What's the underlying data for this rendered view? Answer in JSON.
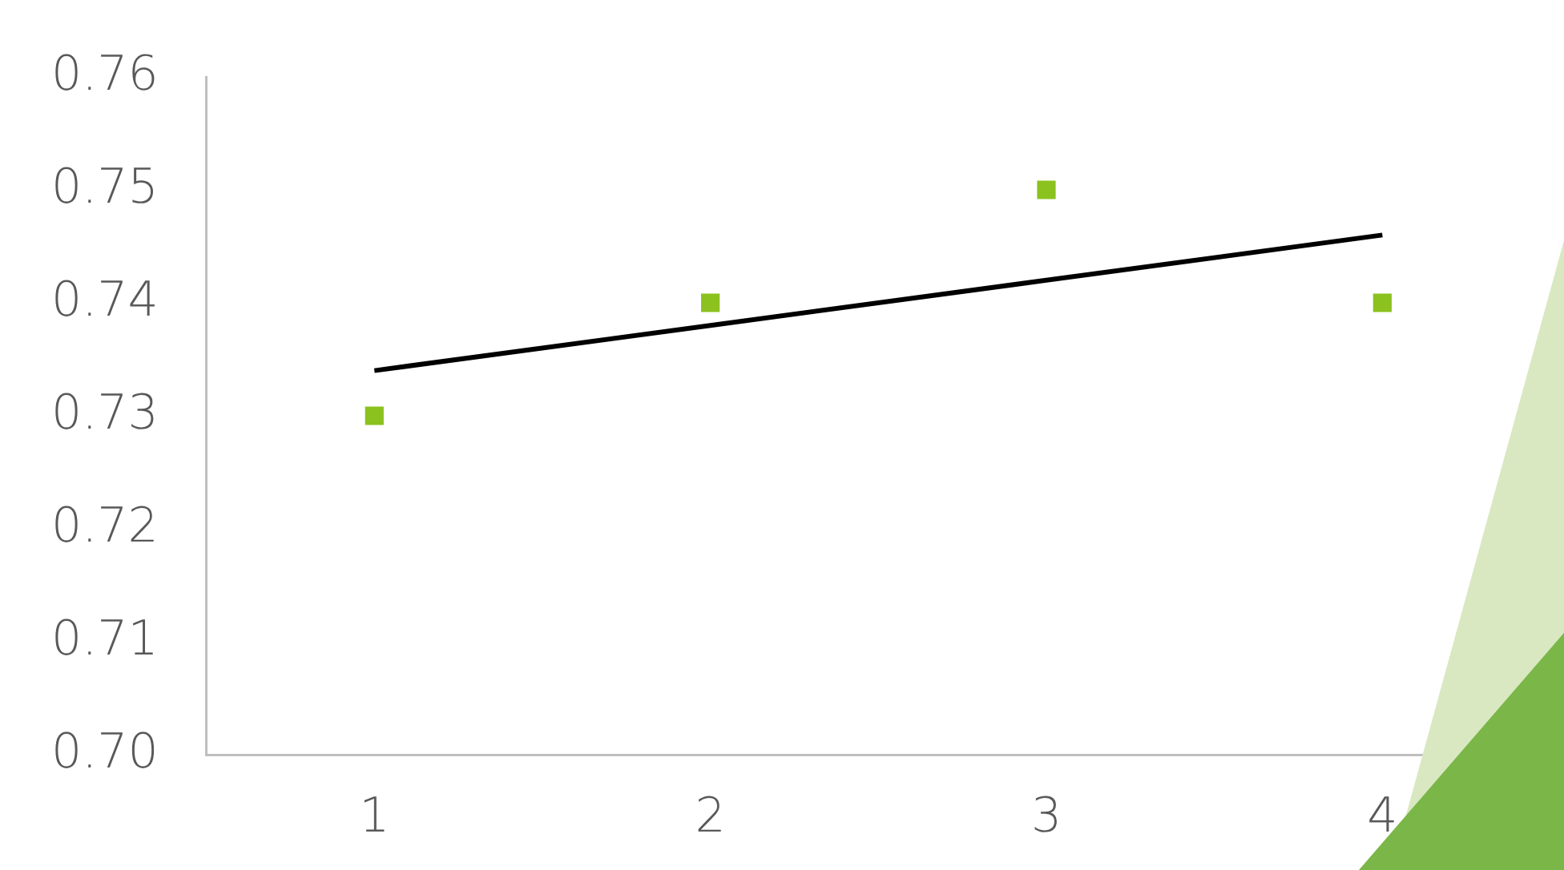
{
  "chart_data": {
    "type": "scatter",
    "categories": [
      "1",
      "2",
      "3",
      "4"
    ],
    "grid": false,
    "legend": false,
    "series": [
      {
        "color": "#8cc21f",
        "marker": "square",
        "values": [
          0.73,
          0.74,
          0.75,
          0.74
        ]
      },
      {
        "type": "line",
        "color": "#000000",
        "marker": "none",
        "values": [
          0.734,
          0.738,
          0.742,
          0.746
        ]
      }
    ],
    "ylim": [
      0.7,
      0.76
    ],
    "yticks": [
      {
        "value": 0.7,
        "label": "0.70"
      },
      0.71,
      0.72,
      0.73,
      0.74,
      0.75,
      0.76
    ]
  }
}
